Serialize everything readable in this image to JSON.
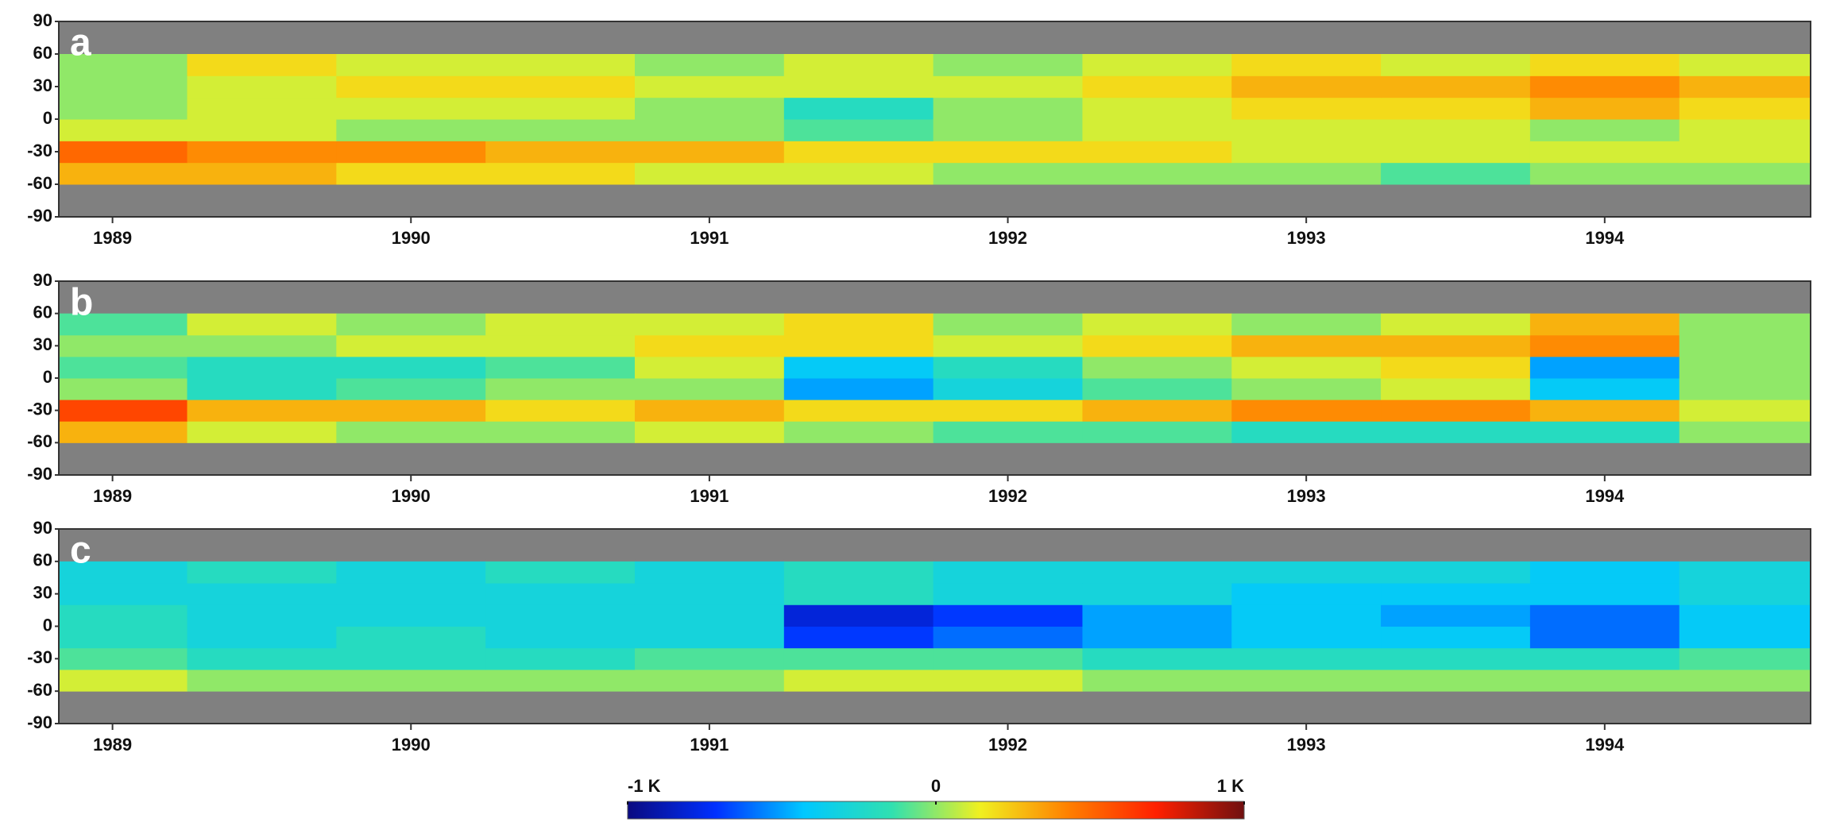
{
  "chart_data": [
    {
      "type": "heatmap",
      "label": "a",
      "x_bins": [
        1988.82,
        1989.25,
        1989.75,
        1990.25,
        1990.75,
        1991.25,
        1991.75,
        1992.25,
        1992.75,
        1993.25,
        1993.75,
        1994.25,
        1994.69
      ],
      "y_bins": [
        -60,
        -40,
        -20,
        0,
        20,
        40,
        60
      ],
      "values": [
        [
          0.3,
          0.3,
          0.2,
          0.2,
          0.1,
          0.1,
          0.0,
          0.0,
          0.0,
          -0.1,
          0.0,
          0.0
        ],
        [
          0.5,
          0.4,
          0.4,
          0.3,
          0.3,
          0.2,
          0.2,
          0.2,
          0.1,
          0.1,
          0.1,
          0.1
        ],
        [
          0.1,
          0.1,
          0.0,
          0.0,
          0.0,
          -0.1,
          0.0,
          0.1,
          0.1,
          0.1,
          0.0,
          0.1
        ],
        [
          0.0,
          0.1,
          0.1,
          0.1,
          0.0,
          -0.2,
          0.0,
          0.1,
          0.2,
          0.2,
          0.3,
          0.2
        ],
        [
          0.0,
          0.1,
          0.2,
          0.2,
          0.1,
          0.1,
          0.1,
          0.2,
          0.3,
          0.3,
          0.4,
          0.3
        ],
        [
          0.0,
          0.2,
          0.1,
          0.1,
          0.0,
          0.1,
          0.0,
          0.1,
          0.2,
          0.1,
          0.2,
          0.1
        ]
      ],
      "xlim": [
        1988.82,
        1994.69
      ],
      "xticks": [
        1989,
        1990,
        1991,
        1992,
        1993,
        1994
      ],
      "ylim": [
        -90,
        90
      ],
      "yticks": [
        -90,
        -60,
        -30,
        0,
        30,
        60,
        90
      ]
    },
    {
      "type": "heatmap",
      "label": "b",
      "x_bins": [
        1988.82,
        1989.25,
        1989.75,
        1990.25,
        1990.75,
        1991.25,
        1991.75,
        1992.25,
        1992.75,
        1993.25,
        1993.75,
        1994.25,
        1994.69
      ],
      "y_bins": [
        -60,
        -40,
        -20,
        0,
        20,
        40,
        60
      ],
      "values": [
        [
          0.3,
          0.1,
          0.0,
          0.0,
          0.1,
          0.0,
          -0.1,
          -0.1,
          -0.2,
          -0.2,
          -0.2,
          0.0
        ],
        [
          0.6,
          0.3,
          0.3,
          0.2,
          0.3,
          0.2,
          0.2,
          0.3,
          0.4,
          0.4,
          0.3,
          0.1
        ],
        [
          0.0,
          -0.2,
          -0.1,
          0.0,
          0.0,
          -0.5,
          -0.3,
          -0.1,
          0.0,
          0.1,
          -0.4,
          0.0
        ],
        [
          -0.1,
          -0.2,
          -0.2,
          -0.1,
          0.1,
          -0.4,
          -0.2,
          0.0,
          0.1,
          0.2,
          -0.5,
          0.0
        ],
        [
          0.0,
          0.0,
          0.1,
          0.1,
          0.2,
          0.2,
          0.1,
          0.2,
          0.3,
          0.3,
          0.4,
          0.0
        ],
        [
          -0.1,
          0.1,
          0.0,
          0.1,
          0.1,
          0.2,
          0.0,
          0.1,
          0.0,
          0.1,
          0.3,
          0.0
        ]
      ],
      "xlim": [
        1988.82,
        1994.69
      ],
      "xticks": [
        1989,
        1990,
        1991,
        1992,
        1993,
        1994
      ],
      "ylim": [
        -90,
        90
      ],
      "yticks": [
        -90,
        -60,
        -30,
        0,
        30,
        60,
        90
      ]
    },
    {
      "type": "heatmap",
      "label": "c",
      "x_bins": [
        1988.82,
        1989.25,
        1989.75,
        1990.25,
        1990.75,
        1991.25,
        1991.75,
        1992.25,
        1992.75,
        1993.25,
        1993.75,
        1994.25,
        1994.69
      ],
      "y_bins": [
        -60,
        -40,
        -20,
        0,
        20,
        40,
        60
      ],
      "values": [
        [
          0.1,
          0.0,
          0.0,
          0.0,
          0.0,
          0.1,
          0.1,
          0.0,
          0.0,
          0.0,
          0.0,
          0.0
        ],
        [
          -0.1,
          -0.2,
          -0.2,
          -0.2,
          -0.1,
          -0.1,
          -0.1,
          -0.2,
          -0.2,
          -0.2,
          -0.2,
          -0.1
        ],
        [
          -0.2,
          -0.3,
          -0.2,
          -0.3,
          -0.3,
          -0.7,
          -0.6,
          -0.5,
          -0.4,
          -0.4,
          -0.6,
          -0.4
        ],
        [
          -0.2,
          -0.3,
          -0.3,
          -0.3,
          -0.3,
          -0.8,
          -0.7,
          -0.5,
          -0.4,
          -0.5,
          -0.6,
          -0.4
        ],
        [
          -0.3,
          -0.3,
          -0.3,
          -0.3,
          -0.3,
          -0.2,
          -0.3,
          -0.3,
          -0.4,
          -0.4,
          -0.4,
          -0.3
        ],
        [
          -0.3,
          -0.2,
          -0.3,
          -0.2,
          -0.3,
          -0.2,
          -0.3,
          -0.3,
          -0.3,
          -0.3,
          -0.4,
          -0.3
        ]
      ],
      "xlim": [
        1988.82,
        1994.69
      ],
      "xticks": [
        1989,
        1990,
        1991,
        1992,
        1993,
        1994
      ],
      "ylim": [
        -90,
        90
      ],
      "yticks": [
        -90,
        -60,
        -30,
        0,
        30,
        60,
        90
      ]
    }
  ],
  "colorbar": {
    "lim": [
      -1,
      1
    ],
    "colors": [
      "#0a0a80",
      "#0030ff",
      "#00c8ff",
      "#30e0b0",
      "#f0f020",
      "#ff8000",
      "#ff2000",
      "#701010"
    ],
    "ticks": [
      {
        "value": -1,
        "label": "-1 K"
      },
      0,
      {
        "value": 1,
        "label": "1 K"
      }
    ]
  }
}
